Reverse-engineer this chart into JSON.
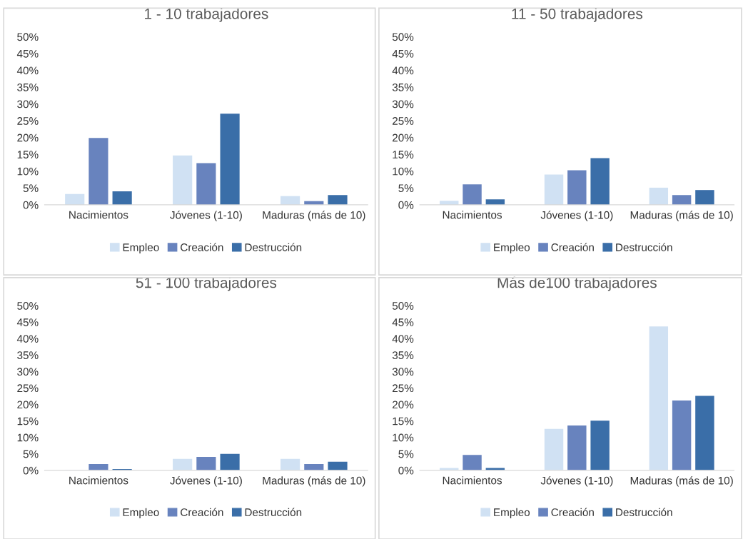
{
  "chart_data": [
    {
      "type": "bar",
      "title": "1 - 10 trabajadores",
      "categories": [
        "Nacimientos",
        "Jóvenes (1-10)",
        "Maduras (más de 10)"
      ],
      "ylim": [
        0,
        50
      ],
      "yticks": [
        {
          "value": 0,
          "label": "0%"
        },
        {
          "value": 5,
          "label": "5%"
        },
        {
          "value": 10,
          "label": "10%"
        },
        {
          "value": 15,
          "label": "15%"
        },
        {
          "value": 20,
          "label": "20%"
        },
        {
          "value": 25,
          "label": "25%"
        },
        {
          "value": 30,
          "label": "30%"
        },
        {
          "value": 35,
          "label": "35%"
        },
        {
          "value": 40,
          "label": "40%"
        },
        {
          "value": 45,
          "label": "45%"
        },
        {
          "value": 50,
          "label": "50%"
        }
      ],
      "grid": false,
      "legend": "bottom",
      "series": [
        {
          "name": "Empleo",
          "color": "#d0e1f3",
          "values": [
            3.2,
            14.7,
            2.6
          ]
        },
        {
          "name": "Creación",
          "color": "#6883be",
          "values": [
            19.9,
            12.4,
            1.1
          ]
        },
        {
          "name": "Destrucción",
          "color": "#3a6ea8",
          "values": [
            4.0,
            27.1,
            2.9
          ]
        }
      ]
    },
    {
      "type": "bar",
      "title": "11 - 50 trabajadores",
      "categories": [
        "Nacimientos",
        "Jóvenes (1-10)",
        "Maduras (más de 10)"
      ],
      "ylim": [
        0,
        50
      ],
      "yticks": [
        {
          "value": 0,
          "label": "0%"
        },
        {
          "value": 5,
          "label": "5%"
        },
        {
          "value": 10,
          "label": "10%"
        },
        {
          "value": 15,
          "label": "15%"
        },
        {
          "value": 20,
          "label": "20%"
        },
        {
          "value": 25,
          "label": "25%"
        },
        {
          "value": 30,
          "label": "30%"
        },
        {
          "value": 35,
          "label": "35%"
        },
        {
          "value": 40,
          "label": "40%"
        },
        {
          "value": 45,
          "label": "45%"
        },
        {
          "value": 50,
          "label": "50%"
        }
      ],
      "grid": false,
      "legend": "bottom",
      "series": [
        {
          "name": "Empleo",
          "color": "#d0e1f3",
          "values": [
            1.2,
            9.0,
            5.1
          ]
        },
        {
          "name": "Creación",
          "color": "#6883be",
          "values": [
            6.1,
            10.3,
            2.9
          ]
        },
        {
          "name": "Destrucción",
          "color": "#3a6ea8",
          "values": [
            1.6,
            13.9,
            4.4
          ]
        }
      ]
    },
    {
      "type": "bar",
      "title": "51 - 100 trabajadores",
      "categories": [
        "Nacimientos",
        "Jóvenes (1-10)",
        "Maduras (más de 10)"
      ],
      "ylim": [
        0,
        50
      ],
      "yticks": [
        {
          "value": 0,
          "label": "0%"
        },
        {
          "value": 5,
          "label": "5%"
        },
        {
          "value": 10,
          "label": "10%"
        },
        {
          "value": 15,
          "label": "15%"
        },
        {
          "value": 20,
          "label": "20%"
        },
        {
          "value": 25,
          "label": "25%"
        },
        {
          "value": 30,
          "label": "30%"
        },
        {
          "value": 35,
          "label": "35%"
        },
        {
          "value": 40,
          "label": "40%"
        },
        {
          "value": 45,
          "label": "45%"
        },
        {
          "value": 50,
          "label": "50%"
        }
      ],
      "grid": false,
      "legend": "bottom",
      "series": [
        {
          "name": "Empleo",
          "color": "#d0e1f3",
          "values": [
            0.1,
            3.5,
            3.5
          ]
        },
        {
          "name": "Creación",
          "color": "#6883be",
          "values": [
            1.9,
            4.1,
            1.9
          ]
        },
        {
          "name": "Destrucción",
          "color": "#3a6ea8",
          "values": [
            0.4,
            5.0,
            2.6
          ]
        }
      ]
    },
    {
      "type": "bar",
      "title": "Más de100 trabajadores",
      "categories": [
        "Nacimientos",
        "Jóvenes (1-10)",
        "Maduras (más de 10)"
      ],
      "ylim": [
        0,
        50
      ],
      "yticks": [
        {
          "value": 0,
          "label": "0%"
        },
        {
          "value": 5,
          "label": "5%"
        },
        {
          "value": 10,
          "label": "10%"
        },
        {
          "value": 15,
          "label": "15%"
        },
        {
          "value": 20,
          "label": "20%"
        },
        {
          "value": 25,
          "label": "25%"
        },
        {
          "value": 30,
          "label": "30%"
        },
        {
          "value": 35,
          "label": "35%"
        },
        {
          "value": 40,
          "label": "40%"
        },
        {
          "value": 45,
          "label": "45%"
        },
        {
          "value": 50,
          "label": "50%"
        }
      ],
      "grid": false,
      "legend": "bottom",
      "series": [
        {
          "name": "Empleo",
          "color": "#d0e1f3",
          "values": [
            0.7,
            12.6,
            43.7
          ]
        },
        {
          "name": "Creación",
          "color": "#6883be",
          "values": [
            4.7,
            13.6,
            21.2
          ]
        },
        {
          "name": "Destrucción",
          "color": "#3a6ea8",
          "values": [
            0.7,
            15.1,
            22.6
          ]
        }
      ]
    }
  ]
}
